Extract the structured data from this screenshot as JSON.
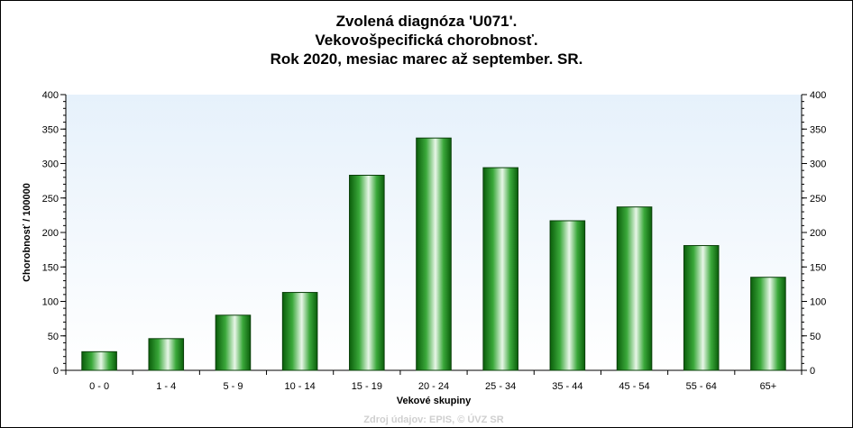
{
  "chart_data": {
    "type": "bar",
    "title_lines": [
      "Zvolená diagnóza 'U071'.",
      "Vekovošpecifická chorobnosť.",
      "Rok 2020, mesiac marec až september. SR."
    ],
    "xlabel": "Vekové skupiny",
    "ylabel": "Chorobnosť / 100000",
    "source": "Zdroj údajov: EPIS, © ÚVZ SR",
    "categories": [
      "0 - 0",
      "1 - 4",
      "5 - 9",
      "10 - 14",
      "15 - 19",
      "20 - 24",
      "25 - 34",
      "35 - 44",
      "45 - 54",
      "55 - 64",
      "65+"
    ],
    "values": [
      27,
      46,
      80,
      113,
      283,
      337,
      294,
      217,
      237,
      181,
      135
    ],
    "ylim": [
      0,
      400
    ],
    "yticks": [
      "0",
      "50",
      "100",
      "150",
      "200",
      "250",
      "300",
      "350",
      "400"
    ],
    "bar_color": "#1c8c1c",
    "background_color": "#eef6fd"
  }
}
